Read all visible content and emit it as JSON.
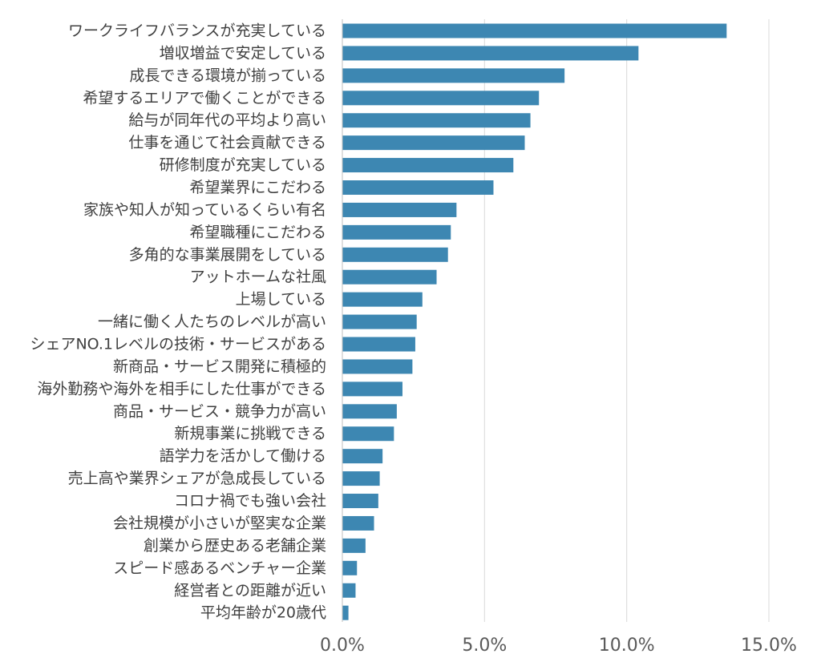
{
  "chart_data": {
    "type": "bar",
    "orientation": "horizontal",
    "title": "",
    "xlabel": "",
    "ylabel": "",
    "xlim": [
      0,
      15
    ],
    "x_ticks": [
      0,
      5,
      10,
      15
    ],
    "x_tick_labels": [
      "0.0%",
      "5.0%",
      "10.0%",
      "15.0%"
    ],
    "grid": "vertical",
    "legend": "none",
    "colors": {
      "bar": "#3d87b2",
      "grid": "#d9d9d9",
      "axis": "#bfbfbf"
    },
    "categories": [
      "ワークライフバランスが充実している",
      "増収増益で安定している",
      "成長できる環境が揃っている",
      "希望するエリアで働くことができる",
      "給与が同年代の平均より高い",
      "仕事を通じて社会貢献できる",
      "研修制度が充実している",
      "希望業界にこだわる",
      "家族や知人が知っているくらい有名",
      "希望職種にこだわる",
      "多角的な事業展開をしている",
      "アットホームな社風",
      "上場している",
      "一緒に働く人たちのレベルが高い",
      "シェアNO.1レベルの技術・サービスがある",
      "新商品・サービス開発に積極的",
      "海外勤務や海外を相手にした仕事ができる",
      "商品・サービス・競争力が高い",
      "新規事業に挑戦できる",
      "語学力を活かして働ける",
      "売上高や業界シェアが急成長している",
      "コロナ禍でも強い会社",
      "会社規模が小さいが堅実な企業",
      "創業から歴史ある老舗企業",
      "スピード感あるベンチャー企業",
      "経営者との距離が近い",
      "平均年齢が20歳代"
    ],
    "values": [
      13.5,
      10.4,
      7.8,
      6.9,
      6.6,
      6.4,
      6.0,
      5.3,
      4.0,
      3.8,
      3.7,
      3.3,
      2.8,
      2.6,
      2.55,
      2.45,
      2.1,
      1.9,
      1.8,
      1.4,
      1.3,
      1.25,
      1.1,
      0.8,
      0.5,
      0.45,
      0.2
    ]
  }
}
